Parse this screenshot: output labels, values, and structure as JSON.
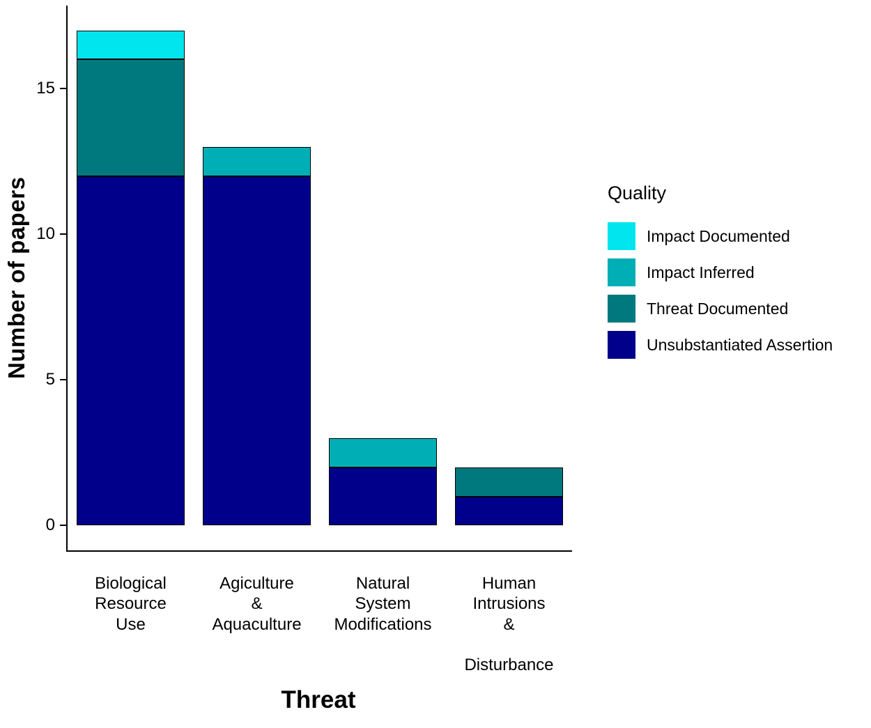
{
  "chart_data": {
    "type": "bar",
    "stacked": true,
    "title": "",
    "xlabel": "Threat",
    "ylabel": "Number of papers",
    "ylim": [
      0,
      17
    ],
    "yticks": [
      0,
      5,
      10,
      15
    ],
    "grid": false,
    "legend_position": "right",
    "legend_title": "Quality",
    "categories": [
      "Biological\nResource\nUse",
      "Agiculture\n&\nAquaculture",
      "Natural\nSystem\nModifications",
      "Human\nIntrusions\n&\n\nDisturbance"
    ],
    "series": [
      {
        "name": "Unsubstantiated Assertion",
        "color": "#00008B",
        "values": [
          12,
          12,
          2,
          1
        ]
      },
      {
        "name": "Threat Documented",
        "color": "#00797E",
        "values": [
          4,
          0,
          0,
          1
        ]
      },
      {
        "name": "Impact Inferred",
        "color": "#00AFB5",
        "values": [
          0,
          1,
          1,
          0
        ]
      },
      {
        "name": "Impact Documented",
        "color": "#00E5EE",
        "values": [
          1,
          0,
          0,
          0
        ]
      }
    ],
    "bar_totals": [
      17,
      13,
      3,
      2
    ],
    "legend_entries": [
      {
        "label": "Impact Documented",
        "color": "#00E5EE"
      },
      {
        "label": "Impact Inferred",
        "color": "#00AFB5"
      },
      {
        "label": "Threat Documented",
        "color": "#00797E"
      },
      {
        "label": "Unsubstantiated Assertion",
        "color": "#00008B"
      }
    ]
  },
  "colors": {
    "axis": "#000000",
    "bar_border": "#000000",
    "background": "#FFFFFF"
  }
}
